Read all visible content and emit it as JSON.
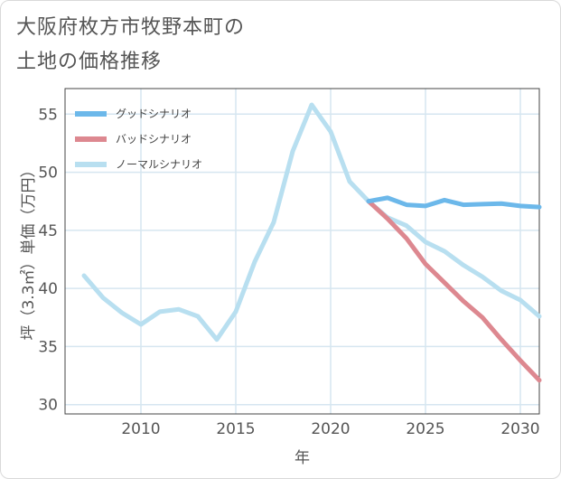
{
  "title_line1": "大阪府枚方市牧野本町の",
  "title_line2": "土地の価格推移",
  "colors": {
    "good": "#6cb8ea",
    "bad": "#dd8890",
    "normal": "#b8dff0",
    "grid": "#d6e6f0",
    "axis": "#444444"
  },
  "chart_data": {
    "type": "line",
    "title": "大阪府枚方市牧野本町の土地の価格推移",
    "xlabel": "年",
    "ylabel": "坪（3.3㎡）単価（万円）",
    "xlim": [
      2006,
      2031
    ],
    "ylim": [
      29.2,
      57.2
    ],
    "xticks": [
      2010,
      2015,
      2020,
      2025,
      2030
    ],
    "yticks": [
      30,
      35,
      40,
      45,
      50,
      55
    ],
    "grid": true,
    "legend_position": "top-left",
    "series": [
      {
        "key": "good",
        "name": "グッドシナリオ",
        "x": [
          2022,
          2023,
          2024,
          2025,
          2026,
          2027,
          2028,
          2029,
          2030,
          2031
        ],
        "y": [
          47.5,
          47.8,
          47.2,
          47.1,
          47.6,
          47.2,
          47.25,
          47.3,
          47.1,
          47.0
        ]
      },
      {
        "key": "bad",
        "name": "バッドシナリオ",
        "x": [
          2022,
          2023,
          2024,
          2025,
          2026,
          2027,
          2028,
          2029,
          2030,
          2031
        ],
        "y": [
          47.5,
          46.0,
          44.3,
          42.1,
          40.5,
          38.9,
          37.5,
          35.6,
          33.8,
          32.1
        ]
      },
      {
        "key": "normal",
        "name": "ノーマルシナリオ",
        "x": [
          2007,
          2008,
          2009,
          2010,
          2011,
          2012,
          2013,
          2014,
          2015,
          2016,
          2017,
          2018,
          2019,
          2020,
          2021,
          2022,
          2023,
          2024,
          2025,
          2026,
          2027,
          2028,
          2029,
          2030,
          2031
        ],
        "y": [
          41.1,
          39.2,
          37.9,
          36.9,
          38.0,
          38.2,
          37.6,
          35.6,
          38.0,
          42.3,
          45.7,
          51.8,
          55.8,
          53.5,
          49.2,
          47.5,
          46.1,
          45.4,
          44.0,
          43.2,
          42.0,
          41.0,
          39.8,
          39.0,
          37.6
        ]
      }
    ]
  }
}
